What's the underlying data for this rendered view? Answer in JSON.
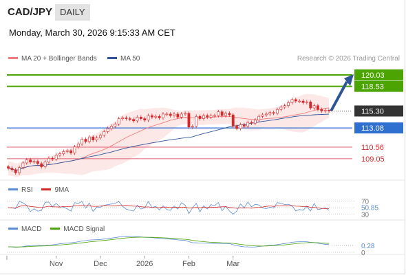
{
  "header": {
    "pair": "CAD/JPY",
    "timeframe": "DAILY",
    "datetime": "Monday, March 30, 2026 9:15:33 AM CET"
  },
  "legend": {
    "ma20": "MA 20 + Bollinger Bands",
    "ma50": "MA 50",
    "credit": "Research © 2026 Trading Central"
  },
  "colors": {
    "ma20": "#f47c7c",
    "ma50": "#2f5597",
    "resistance": "#4ca400",
    "support": "#2f6fd0",
    "level_red": "#e06070",
    "band": "#fde4e4",
    "candle": "#d62728",
    "arrow": "#2f5597",
    "rsi": "#5b8ad6",
    "macd_signal": "#4ca400"
  },
  "chart_data": [
    {
      "type": "candlestick",
      "title": "CAD/JPY",
      "ylim": [
        106.6,
        121.2
      ],
      "x_labels": [
        "Nov",
        "Dec",
        "2026",
        "Feb",
        "Mar"
      ],
      "x_label_index": [
        13,
        25,
        37,
        49,
        61
      ],
      "levels": [
        {
          "value": 120.03,
          "label": "120.03",
          "kind": "resistance"
        },
        {
          "value": 118.53,
          "label": "118.53",
          "kind": "resistance"
        },
        {
          "value": 115.3,
          "label": "115.30",
          "kind": "current"
        },
        {
          "value": 113.08,
          "label": "113.08",
          "kind": "support"
        },
        {
          "value": 110.56,
          "label": "110.56",
          "kind": "minor"
        },
        {
          "value": 109.05,
          "label": "109.05",
          "kind": "minor"
        }
      ],
      "projection": {
        "from": 115.3,
        "to": 120.03
      },
      "closes": [
        107.8,
        107.6,
        107.2,
        107.9,
        108.5,
        108.9,
        108.6,
        108.7,
        108.4,
        108.0,
        108.6,
        109.1,
        109.0,
        109.5,
        109.7,
        110.0,
        110.1,
        109.8,
        110.6,
        111.0,
        111.6,
        111.3,
        111.9,
        111.5,
        111.8,
        112.1,
        112.6,
        113.0,
        113.3,
        113.6,
        114.3,
        114.4,
        114.3,
        114.2,
        114.0,
        114.5,
        114.3,
        114.1,
        114.7,
        114.5,
        114.6,
        114.4,
        114.9,
        114.9,
        114.7,
        114.9,
        114.5,
        114.9,
        115.0,
        113.2,
        113.3,
        114.6,
        114.3,
        114.7,
        114.5,
        114.7,
        114.7,
        115.2,
        114.7,
        115.0,
        114.8,
        113.3,
        113.0,
        113.5,
        113.3,
        113.8,
        113.7,
        114.1,
        114.6,
        114.8,
        114.9,
        115.1,
        115.0,
        115.5,
        115.8,
        116.0,
        116.4,
        116.8,
        116.6,
        116.6,
        116.4,
        116.5,
        115.7,
        116.0,
        115.5,
        115.3,
        115.4,
        115.3
      ]
    },
    {
      "type": "line",
      "name": "RSI",
      "legend": [
        "RSI",
        "9MA"
      ],
      "levels": [
        70,
        50,
        30
      ],
      "value_label": "50.85",
      "ylim": [
        25,
        75
      ]
    },
    {
      "type": "line",
      "name": "MACD",
      "legend": [
        "MACD",
        "MACD Signal"
      ],
      "zero_label": "0",
      "value_label": "0.28"
    }
  ]
}
